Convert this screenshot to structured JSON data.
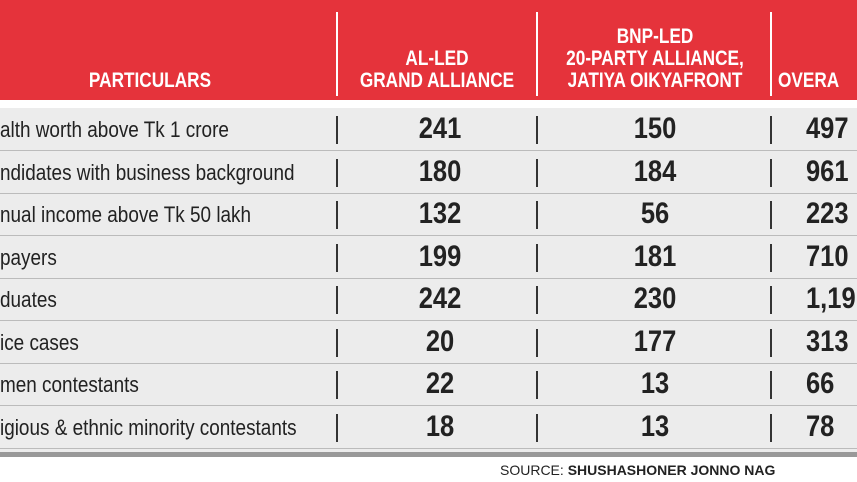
{
  "table": {
    "header": [
      "PARTICULARS",
      "AL-LED\nGRAND ALLIANCE",
      "BNP-LED\n20-PARTY ALLIANCE,\nJATIYA OIKYAFRONT",
      "OVERA"
    ],
    "rows": [
      [
        "alth worth above Tk 1 crore",
        "241",
        "150",
        "497"
      ],
      [
        "ndidates with business background",
        "180",
        "184",
        "961"
      ],
      [
        "nual income above Tk 50 lakh",
        "132",
        "56",
        "223"
      ],
      [
        "payers",
        "199",
        "181",
        "710"
      ],
      [
        "duates",
        "242",
        "230",
        "1,19"
      ],
      [
        "ice cases",
        "20",
        "177",
        "313"
      ],
      [
        "men contestants",
        "22",
        "13",
        "66"
      ],
      [
        "igious & ethnic minority contestants",
        "18",
        "13",
        "78"
      ]
    ]
  },
  "source": {
    "label": "SOURCE:",
    "name": "SHUSHASHONER JONNO NAG"
  }
}
